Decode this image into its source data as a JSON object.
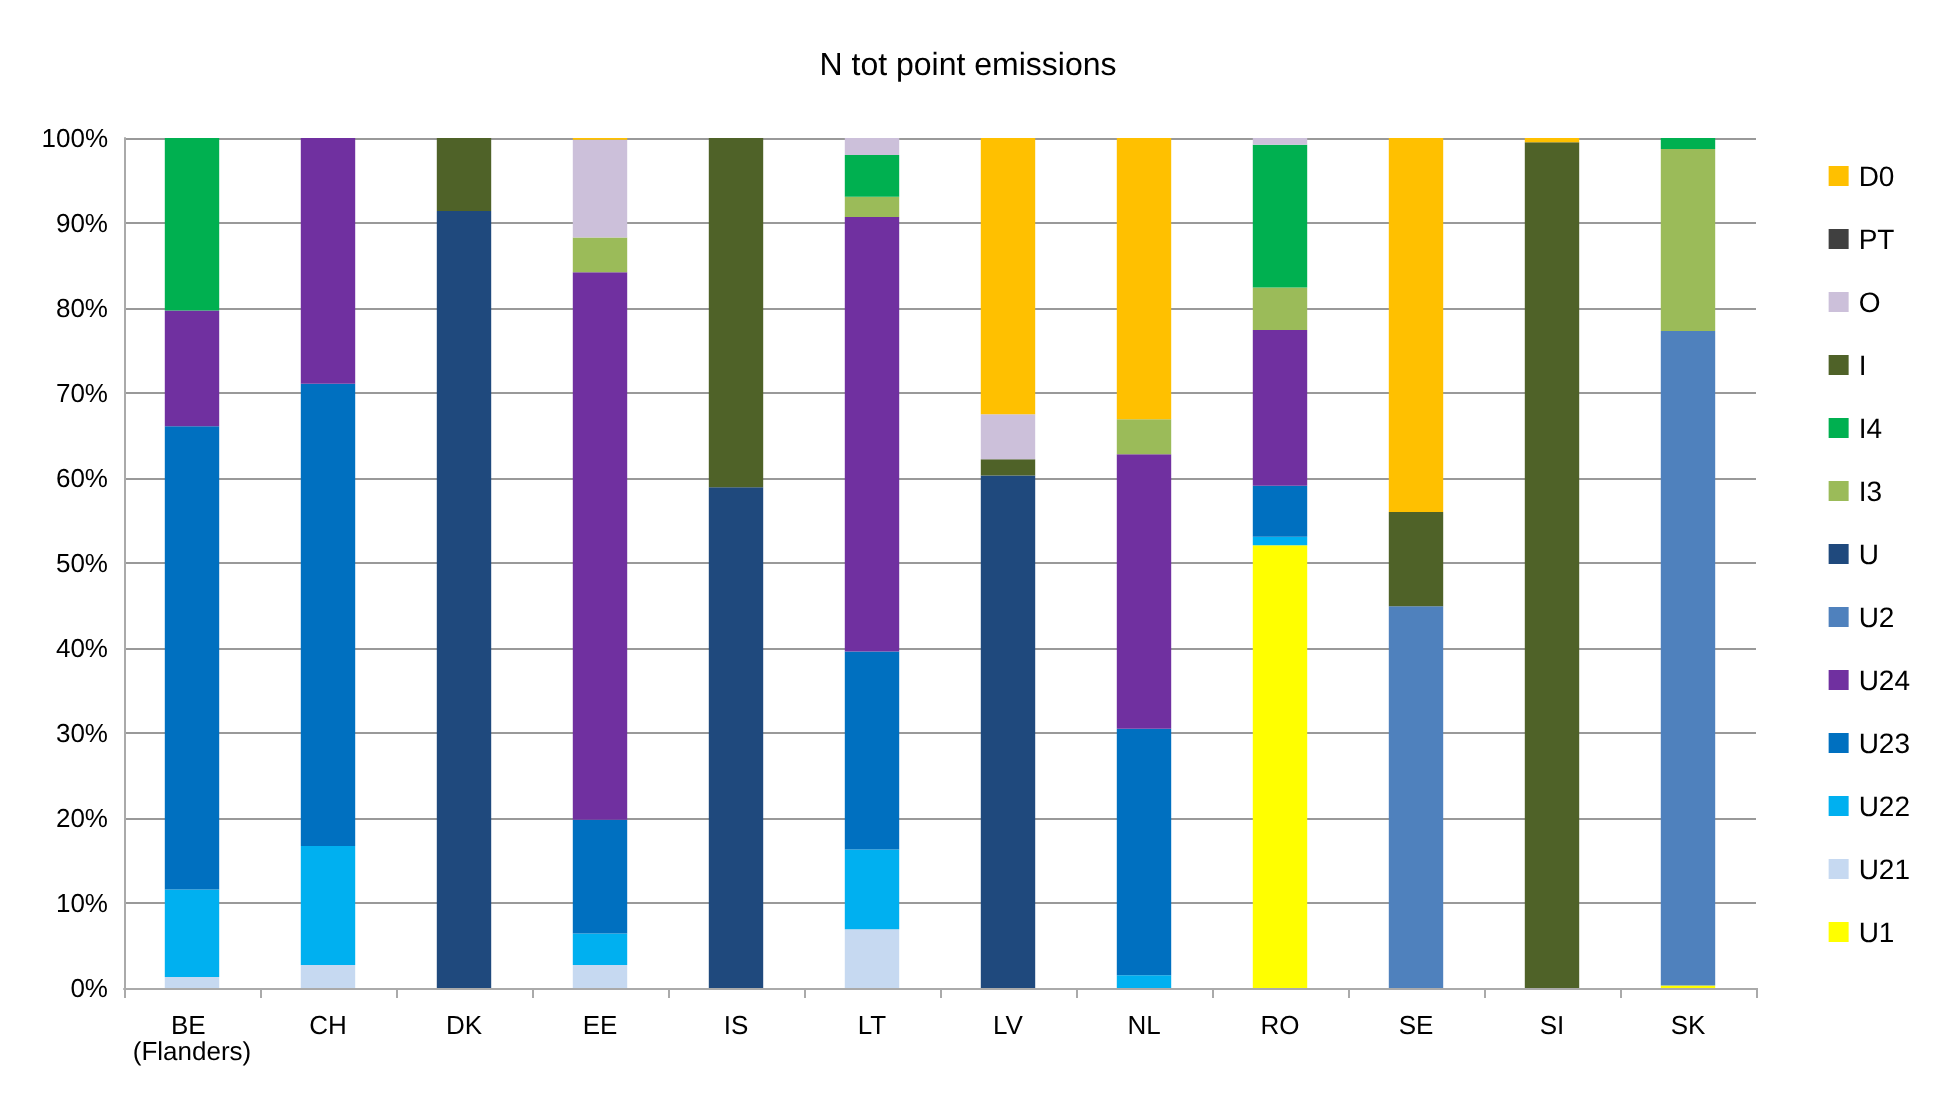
{
  "chart_data": {
    "type": "bar",
    "title": "N tot point emissions",
    "stacked": true,
    "grid": "y",
    "legend": "right",
    "categories": [
      "BE (Flanders)",
      "CH",
      "DK",
      "EE",
      "IS",
      "LT",
      "LV",
      "NL",
      "RO",
      "SE",
      "SI",
      "SK"
    ],
    "ylim": [
      0,
      100
    ],
    "yticks": [
      {
        "value": 0,
        "label": "0%"
      },
      {
        "value": 10,
        "label": "10%"
      },
      {
        "value": 20,
        "label": "20%"
      },
      {
        "value": 30,
        "label": "30%"
      },
      {
        "value": 40,
        "label": "40%"
      },
      {
        "value": 50,
        "label": "50%"
      },
      {
        "value": 60,
        "label": "60%"
      },
      {
        "value": 70,
        "label": "70%"
      },
      {
        "value": 80,
        "label": "80%"
      },
      {
        "value": 90,
        "label": "90%"
      },
      {
        "value": 100,
        "label": "100%"
      }
    ],
    "series": [
      {
        "name": "U1",
        "color": "#ffff00",
        "values": [
          null,
          null,
          null,
          null,
          null,
          null,
          null,
          null,
          52.1,
          null,
          null,
          0.3
        ]
      },
      {
        "name": "U21",
        "color": "#c6d9f1",
        "values": [
          1.3,
          2.7,
          null,
          2.7,
          null,
          6.9,
          null,
          null,
          null,
          null,
          null,
          null
        ]
      },
      {
        "name": "U22",
        "color": "#00b0f0",
        "values": [
          10.3,
          14.0,
          null,
          3.7,
          null,
          9.4,
          null,
          1.5,
          1.0,
          null,
          null,
          null
        ]
      },
      {
        "name": "U23",
        "color": "#0070c0",
        "values": [
          54.5,
          54.4,
          null,
          13.4,
          null,
          23.3,
          null,
          29.0,
          6.0,
          null,
          null,
          null
        ]
      },
      {
        "name": "U24",
        "color": "#7030a0",
        "values": [
          13.6,
          28.9,
          null,
          64.4,
          null,
          51.1,
          null,
          32.3,
          18.3,
          null,
          null,
          null
        ]
      },
      {
        "name": "U2",
        "color": "#4f81bd",
        "values": [
          null,
          null,
          null,
          null,
          null,
          null,
          null,
          null,
          null,
          44.9,
          null,
          77.0
        ]
      },
      {
        "name": "U",
        "color": "#1f497d",
        "values": [
          null,
          null,
          91.4,
          null,
          58.9,
          null,
          60.3,
          null,
          null,
          null,
          null,
          null
        ]
      },
      {
        "name": "I3",
        "color": "#9bbb59",
        "values": [
          null,
          null,
          null,
          4.1,
          null,
          2.4,
          null,
          4.1,
          5.0,
          null,
          null,
          21.4
        ]
      },
      {
        "name": "I4",
        "color": "#00b050",
        "values": [
          20.3,
          null,
          null,
          null,
          null,
          4.9,
          null,
          null,
          16.8,
          null,
          null,
          1.3
        ]
      },
      {
        "name": "I",
        "color": "#4f6228",
        "values": [
          null,
          null,
          8.6,
          null,
          41.1,
          null,
          1.9,
          null,
          null,
          11.1,
          99.5,
          null
        ]
      },
      {
        "name": "O",
        "color": "#ccc0da",
        "values": [
          null,
          null,
          null,
          11.5,
          null,
          2.0,
          5.3,
          null,
          0.8,
          null,
          null,
          null
        ]
      },
      {
        "name": "PT",
        "color": "#404040",
        "values": [
          null,
          null,
          null,
          null,
          null,
          null,
          null,
          null,
          null,
          null,
          null,
          null
        ]
      },
      {
        "name": "D0",
        "color": "#ffc000",
        "values": [
          null,
          null,
          null,
          0.2,
          null,
          null,
          32.5,
          33.1,
          null,
          44.0,
          0.5,
          null
        ]
      }
    ]
  }
}
